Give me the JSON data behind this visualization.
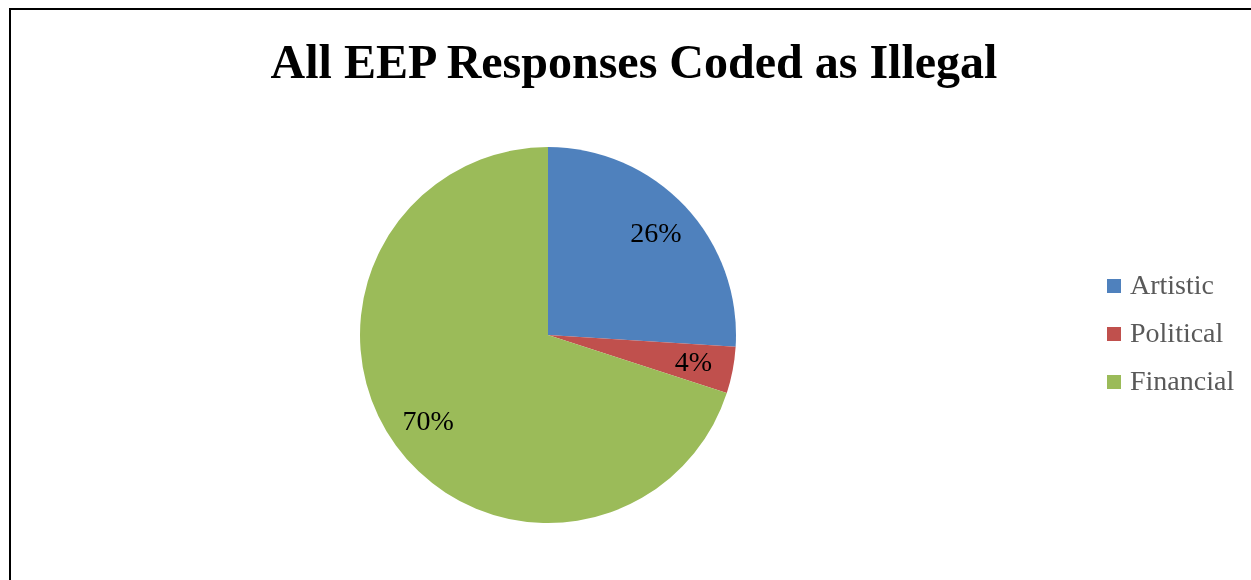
{
  "chart_data": {
    "type": "pie",
    "title": "All EEP Responses Coded as Illegal",
    "categories": [
      "Artistic",
      "Political",
      "Financial"
    ],
    "values": [
      26,
      4,
      70
    ],
    "colors": [
      "#4f81bd",
      "#c0504d",
      "#9bbb59"
    ],
    "value_labels": [
      "26%",
      "4%",
      "70%"
    ],
    "legend": "right"
  }
}
